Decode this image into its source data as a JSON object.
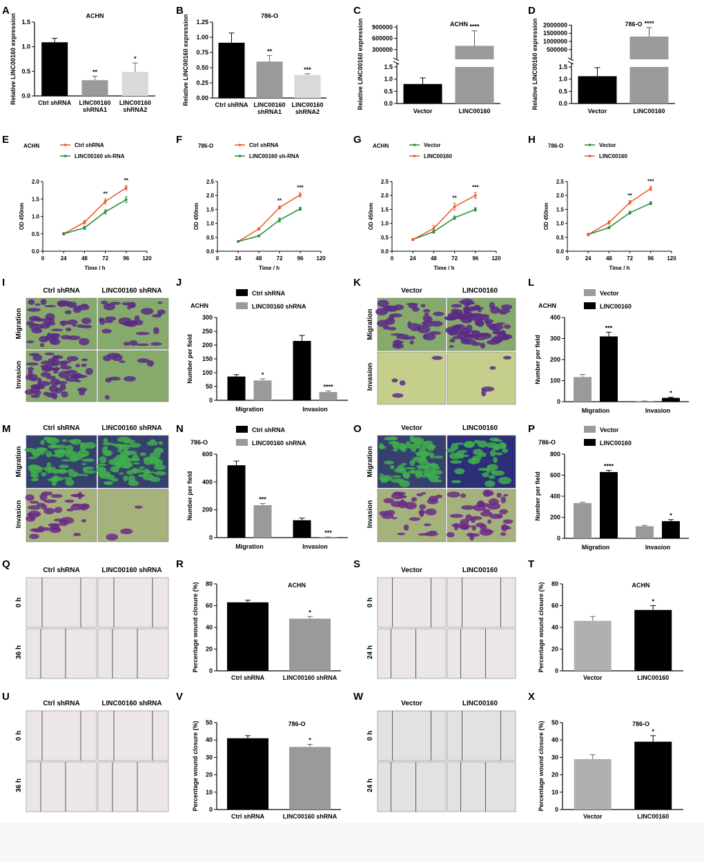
{
  "panel_letters": [
    "A",
    "B",
    "C",
    "D",
    "E",
    "F",
    "G",
    "H",
    "I",
    "J",
    "K",
    "L",
    "M",
    "N",
    "O",
    "P",
    "Q",
    "R",
    "S",
    "T",
    "U",
    "V",
    "W",
    "X"
  ],
  "colors": {
    "black": "#000000",
    "grey_dark": "#9a9a9a",
    "grey_light": "#d9d9d9",
    "grey_mid": "#b0b0b0",
    "orange": "#f0531f",
    "green": "#1c8a33",
    "micro_bg": "#7da46a",
    "micro_cells": "#5d2b86",
    "wound_bg": "#ece6ea"
  },
  "image_panels": {
    "I": {
      "cols": [
        "Ctrl shRNA",
        "LINC00160 shRNA"
      ],
      "rows": [
        "Migration",
        "Invasion"
      ],
      "style": "green"
    },
    "K": {
      "cols": [
        "Vector",
        "LINC00160"
      ],
      "rows": [
        "Migration",
        "Invasion"
      ],
      "style": "green"
    },
    "M": {
      "cols": [
        "Ctrl shRNA",
        "LINC00160 shRNA"
      ],
      "rows": [
        "Migration",
        "Invasion"
      ],
      "style": "blue"
    },
    "O": {
      "cols": [
        "Vector",
        "LINC00160"
      ],
      "rows": [
        "Migration",
        "Invasion"
      ],
      "style": "blue"
    },
    "Q": {
      "cols": [
        "Ctrl shRNA",
        "LINC00160 shRNA"
      ],
      "rows": [
        "0 h",
        "36 h"
      ],
      "style": "wound"
    },
    "S": {
      "cols": [
        "Vector",
        "LINC00160"
      ],
      "rows": [
        "0 h",
        "24 h"
      ],
      "style": "wound"
    },
    "U": {
      "cols": [
        "Ctrl shRNA",
        "LINC00160 shRNA"
      ],
      "rows": [
        "0 h",
        "36 h"
      ],
      "style": "wound"
    },
    "W": {
      "cols": [
        "Vector",
        "LINC00160"
      ],
      "rows": [
        "0 h",
        "24 h"
      ],
      "style": "wound2"
    }
  },
  "chart_data": [
    {
      "panel": "A",
      "type": "bar",
      "title": "ACHN",
      "ylabel": "Relative LINC00160 expression",
      "categories": [
        "Ctrl shRNA",
        "LINC00160\nshRNA1",
        "LINC00160\nshRNA2"
      ],
      "values": [
        1.09,
        0.32,
        0.49
      ],
      "errors": [
        0.08,
        0.08,
        0.18
      ],
      "sig": [
        "",
        "**",
        "*"
      ],
      "colors": [
        "#000000",
        "#9a9a9a",
        "#d9d9d9"
      ],
      "ylim": [
        0,
        1.5
      ],
      "yticks": [
        0,
        0.5,
        1.0,
        1.5
      ],
      "ytick_labels": [
        "0.0",
        "0.5",
        "1.0",
        "1.5"
      ]
    },
    {
      "panel": "B",
      "type": "bar",
      "title": "786-O",
      "ylabel": "Relative LINC00160 expression",
      "categories": [
        "Ctrl shRNA",
        "LINC00160\nshRNA1",
        "LINC00160\nshRNA2"
      ],
      "values": [
        0.91,
        0.6,
        0.38
      ],
      "errors": [
        0.16,
        0.1,
        0.02
      ],
      "sig": [
        "",
        "**",
        "***"
      ],
      "colors": [
        "#000000",
        "#9a9a9a",
        "#d9d9d9"
      ],
      "ylim": [
        0,
        1.25
      ],
      "yticks": [
        0,
        0.25,
        0.5,
        0.75,
        1.0,
        1.25
      ],
      "ytick_labels": [
        "0.00",
        "0.25",
        "0.50",
        "0.75",
        "1.00",
        "1.25"
      ]
    },
    {
      "panel": "C",
      "type": "bar",
      "title": "ACHN",
      "ylabel": "Relative LINC00160 expression",
      "categories": [
        "Vector",
        "LINC00160"
      ],
      "values": [
        0.8,
        400000
      ],
      "errors": [
        0.25,
        400000
      ],
      "sig": [
        "",
        "****"
      ],
      "colors": [
        "#000000",
        "#9a9a9a"
      ],
      "broken_axis": true,
      "lower_ticks": [
        "0.0",
        "0.5",
        "1.0",
        "1.5"
      ],
      "upper_ticks": [
        "300000",
        "600000",
        "900000"
      ]
    },
    {
      "panel": "D",
      "type": "bar",
      "title": "786-O",
      "ylabel": "Relative LINC00160 expression",
      "categories": [
        "Vector",
        "LINC00160"
      ],
      "values": [
        1.12,
        1300000
      ],
      "errors": [
        0.35,
        550000
      ],
      "sig": [
        "",
        "****"
      ],
      "colors": [
        "#000000",
        "#9a9a9a"
      ],
      "broken_axis": true,
      "lower_ticks": [
        "0.0",
        "0.5",
        "1.0",
        "1.5"
      ],
      "upper_ticks": [
        "500000",
        "1000000",
        "1500000",
        "2000000"
      ]
    },
    {
      "panel": "E",
      "type": "line",
      "title": "ACHN",
      "xlabel": "Time / h",
      "ylabel": "OD 450nm",
      "x": [
        24,
        48,
        72,
        96
      ],
      "xlim": [
        0,
        120
      ],
      "xticks": [
        0,
        24,
        48,
        72,
        96,
        120
      ],
      "ylim": [
        0,
        2.0
      ],
      "yticks": [
        0,
        0.5,
        1.0,
        1.5,
        2.0
      ],
      "ytick_labels": [
        "0.0",
        "0.5",
        "1.0",
        "1.5",
        "2.0"
      ],
      "series": [
        {
          "name": "Ctrl  shRNA",
          "color": "#f0531f",
          "values": [
            0.5,
            0.83,
            1.43,
            1.82
          ],
          "err": [
            0.03,
            0.05,
            0.07,
            0.06
          ]
        },
        {
          "name": "LINC00160 sh-RNA",
          "color": "#1c8a33",
          "values": [
            0.5,
            0.67,
            1.13,
            1.48
          ],
          "err": [
            0.03,
            0.04,
            0.06,
            0.08
          ]
        }
      ],
      "sig": [
        {
          "x": 72,
          "text": "**"
        },
        {
          "x": 96,
          "text": "**"
        }
      ]
    },
    {
      "panel": "F",
      "type": "line",
      "title": "786-O",
      "xlabel": "Time / h",
      "ylabel": "OD 450nm",
      "x": [
        24,
        48,
        72,
        96
      ],
      "xlim": [
        0,
        120
      ],
      "xticks": [
        0,
        24,
        48,
        72,
        96,
        120
      ],
      "ylim": [
        0,
        2.5
      ],
      "yticks": [
        0,
        0.5,
        1.0,
        1.5,
        2.0,
        2.5
      ],
      "ytick_labels": [
        "0.0",
        "0.5",
        "1.0",
        "1.5",
        "2.0",
        "2.5"
      ],
      "series": [
        {
          "name": "Ctrl shRNA",
          "color": "#f0531f",
          "values": [
            0.35,
            0.8,
            1.57,
            2.02
          ],
          "err": [
            0.02,
            0.04,
            0.05,
            0.07
          ]
        },
        {
          "name": "LINC00160 sh-RNA",
          "color": "#1c8a33",
          "values": [
            0.35,
            0.55,
            1.12,
            1.52
          ],
          "err": [
            0.02,
            0.03,
            0.07,
            0.05
          ]
        }
      ],
      "sig": [
        {
          "x": 72,
          "text": "**"
        },
        {
          "x": 96,
          "text": "***"
        }
      ]
    },
    {
      "panel": "G",
      "type": "line",
      "title": "ACHN",
      "xlabel": "Time / h",
      "ylabel": "OD 450nm",
      "x": [
        24,
        48,
        72,
        96
      ],
      "xlim": [
        0,
        120
      ],
      "xticks": [
        0,
        24,
        48,
        72,
        96,
        120
      ],
      "ylim": [
        0,
        2.5
      ],
      "yticks": [
        0,
        0.5,
        1.0,
        1.5,
        2.0,
        2.5
      ],
      "ytick_labels": [
        "0.0",
        "0.5",
        "1.0",
        "1.5",
        "2.0",
        "2.5"
      ],
      "series": [
        {
          "name": "Vector",
          "color": "#1c8a33",
          "values": [
            0.42,
            0.7,
            1.2,
            1.5
          ],
          "err": [
            0.03,
            0.05,
            0.06,
            0.06
          ]
        },
        {
          "name": "LINC00160",
          "color": "#f0531f",
          "values": [
            0.42,
            0.82,
            1.6,
            2.0
          ],
          "err": [
            0.03,
            0.1,
            0.12,
            0.1
          ]
        }
      ],
      "sig": [
        {
          "x": 72,
          "text": "**"
        },
        {
          "x": 96,
          "text": "***"
        }
      ]
    },
    {
      "panel": "H",
      "type": "line",
      "title": "786-O",
      "xlabel": "Time / h",
      "ylabel": "OD 450nm",
      "x": [
        24,
        48,
        72,
        96
      ],
      "xlim": [
        0,
        120
      ],
      "xticks": [
        0,
        24,
        48,
        72,
        96,
        120
      ],
      "ylim": [
        0,
        2.5
      ],
      "yticks": [
        0,
        0.5,
        1.0,
        1.5,
        2.0,
        2.5
      ],
      "ytick_labels": [
        "0.0",
        "0.5",
        "1.0",
        "1.5",
        "2.0",
        "2.5"
      ],
      "series": [
        {
          "name": "Vector",
          "color": "#1c8a33",
          "values": [
            0.6,
            0.85,
            1.38,
            1.72
          ],
          "err": [
            0.04,
            0.04,
            0.05,
            0.05
          ]
        },
        {
          "name": "LINC00160",
          "color": "#f0531f",
          "values": [
            0.6,
            1.03,
            1.75,
            2.25
          ],
          "err": [
            0.04,
            0.06,
            0.06,
            0.07
          ]
        }
      ],
      "sig": [
        {
          "x": 72,
          "text": "**"
        },
        {
          "x": 96,
          "text": "***"
        }
      ]
    },
    {
      "panel": "J",
      "type": "bar",
      "title": "ACHN",
      "ylabel": "Number per field",
      "groups": [
        "Migration",
        "Invasion"
      ],
      "series": [
        {
          "name": "Ctrl shRNA",
          "color": "#000000",
          "values": [
            86,
            215
          ],
          "err": [
            7,
            20
          ]
        },
        {
          "name": "LINC00160 shRNA",
          "color": "#9a9a9a",
          "values": [
            72,
            30
          ],
          "err": [
            6,
            4
          ]
        }
      ],
      "sig": [
        [
          "",
          ""
        ],
        [
          "*",
          "****"
        ]
      ],
      "ylim": [
        0,
        300
      ],
      "yticks": [
        0,
        50,
        100,
        150,
        200,
        250,
        300
      ],
      "ytick_labels": [
        "0",
        "50",
        "100",
        "150",
        "200",
        "250",
        "300"
      ]
    },
    {
      "panel": "L",
      "type": "bar",
      "title": "ACHN",
      "ylabel": "Number per field",
      "groups": [
        "Migration",
        "Invasion"
      ],
      "series": [
        {
          "name": "Vector",
          "color": "#9a9a9a",
          "values": [
            117,
            2
          ],
          "err": [
            12,
            1
          ]
        },
        {
          "name": "LINC00160",
          "color": "#000000",
          "values": [
            310,
            18
          ],
          "err": [
            20,
            3
          ]
        }
      ],
      "sig": [
        [
          "",
          ""
        ],
        [
          "***",
          "*"
        ]
      ],
      "ylim": [
        0,
        400
      ],
      "yticks": [
        0,
        100,
        200,
        300,
        400
      ],
      "ytick_labels": [
        "0",
        "100",
        "200",
        "300",
        "400"
      ]
    },
    {
      "panel": "N",
      "type": "bar",
      "title": "786-O",
      "ylabel": "Number per field",
      "groups": [
        "Migration",
        "Invasion"
      ],
      "series": [
        {
          "name": "Ctrl shRNA",
          "color": "#000000",
          "values": [
            520,
            125
          ],
          "err": [
            30,
            15
          ]
        },
        {
          "name": "LINC00160 shRNA",
          "color": "#9a9a9a",
          "values": [
            233,
            3
          ],
          "err": [
            12,
            1
          ]
        }
      ],
      "sig": [
        [
          "",
          ""
        ],
        [
          "***",
          "***"
        ]
      ],
      "ylim": [
        0,
        600
      ],
      "yticks": [
        0,
        200,
        400,
        600
      ],
      "ytick_labels": [
        "0",
        "200",
        "400",
        "600"
      ]
    },
    {
      "panel": "P",
      "type": "bar",
      "title": "786-O",
      "ylabel": "Number per field",
      "groups": [
        "Migration",
        "Invasion"
      ],
      "series": [
        {
          "name": "Vector",
          "color": "#9a9a9a",
          "values": [
            335,
            115
          ],
          "err": [
            8,
            8
          ]
        },
        {
          "name": "LINC00160",
          "color": "#000000",
          "values": [
            630,
            163
          ],
          "err": [
            15,
            15
          ]
        }
      ],
      "sig": [
        [
          "",
          ""
        ],
        [
          "****",
          "*"
        ]
      ],
      "ylim": [
        0,
        800
      ],
      "yticks": [
        0,
        200,
        400,
        600,
        800
      ],
      "ytick_labels": [
        "0",
        "200",
        "400",
        "600",
        "800"
      ]
    },
    {
      "panel": "R",
      "type": "bar",
      "title": "ACHN",
      "ylabel": "Percentage wound closure (%)",
      "categories": [
        "Ctrl shRNA",
        "LINC00160 shRNA"
      ],
      "values": [
        63,
        48
      ],
      "errors": [
        2,
        2
      ],
      "sig": [
        "",
        "*"
      ],
      "colors": [
        "#000000",
        "#9a9a9a"
      ],
      "ylim": [
        0,
        80
      ],
      "yticks": [
        0,
        20,
        40,
        60,
        80
      ],
      "ytick_labels": [
        "0",
        "20",
        "40",
        "60",
        "80"
      ]
    },
    {
      "panel": "T",
      "type": "bar",
      "title": "ACHN",
      "ylabel": "Percentage wound closure (%)",
      "categories": [
        "Vector",
        "LINC00160"
      ],
      "values": [
        46,
        56
      ],
      "errors": [
        4,
        4
      ],
      "sig": [
        "",
        "*"
      ],
      "colors": [
        "#b0b0b0",
        "#000000"
      ],
      "ylim": [
        0,
        80
      ],
      "yticks": [
        0,
        20,
        40,
        60,
        80
      ],
      "ytick_labels": [
        "0",
        "20",
        "40",
        "60",
        "80"
      ]
    },
    {
      "panel": "V",
      "type": "bar",
      "title": "786-O",
      "ylabel": "Percentage wound closure (%)",
      "categories": [
        "Ctrl shRNA",
        "LINC00160 shRNA"
      ],
      "values": [
        41,
        36
      ],
      "errors": [
        1.5,
        1.5
      ],
      "sig": [
        "",
        "*"
      ],
      "colors": [
        "#000000",
        "#9a9a9a"
      ],
      "ylim": [
        0,
        50
      ],
      "yticks": [
        0,
        10,
        20,
        30,
        40,
        50
      ],
      "ytick_labels": [
        "0",
        "10",
        "20",
        "30",
        "40",
        "50"
      ]
    },
    {
      "panel": "X",
      "type": "bar",
      "title": "786-O",
      "ylabel": "Percentage wound closure (%)",
      "categories": [
        "Vector",
        "LINC00160"
      ],
      "values": [
        29,
        39
      ],
      "errors": [
        2.5,
        3.5
      ],
      "sig": [
        "",
        "*"
      ],
      "colors": [
        "#b0b0b0",
        "#000000"
      ],
      "ylim": [
        0,
        50
      ],
      "yticks": [
        0,
        10,
        20,
        30,
        40,
        50
      ],
      "ytick_labels": [
        "0",
        "10",
        "20",
        "30",
        "40",
        "50"
      ]
    }
  ]
}
